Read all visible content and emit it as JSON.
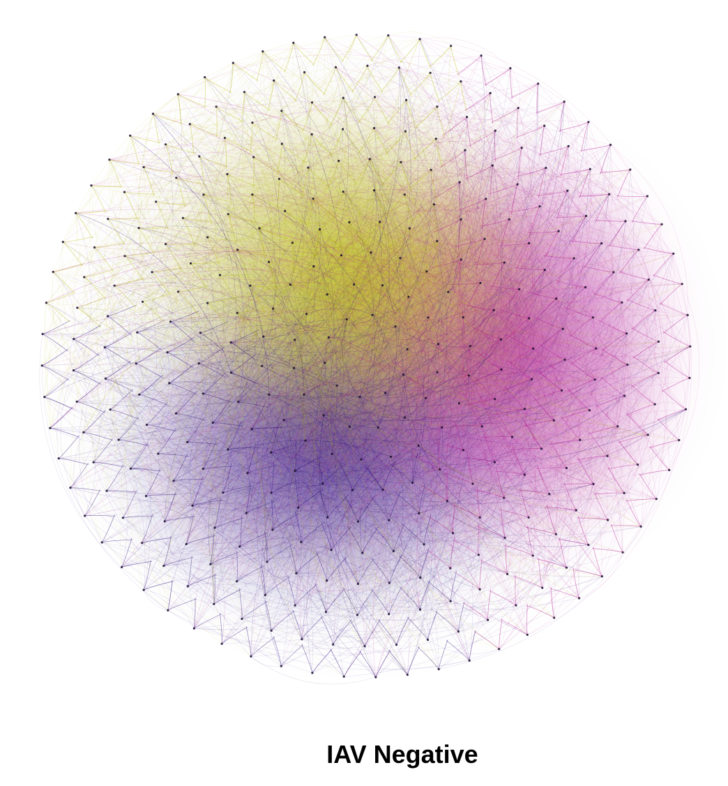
{
  "figure": {
    "caption": "IAV Negative",
    "type": "circular network graph (node-link diagram with curved edges)",
    "colors": {
      "yellow_cluster": "#b8b800",
      "magenta_cluster": "#b0108c",
      "purple_cluster": "#2a0a7a",
      "background": "#ffffff"
    }
  }
}
